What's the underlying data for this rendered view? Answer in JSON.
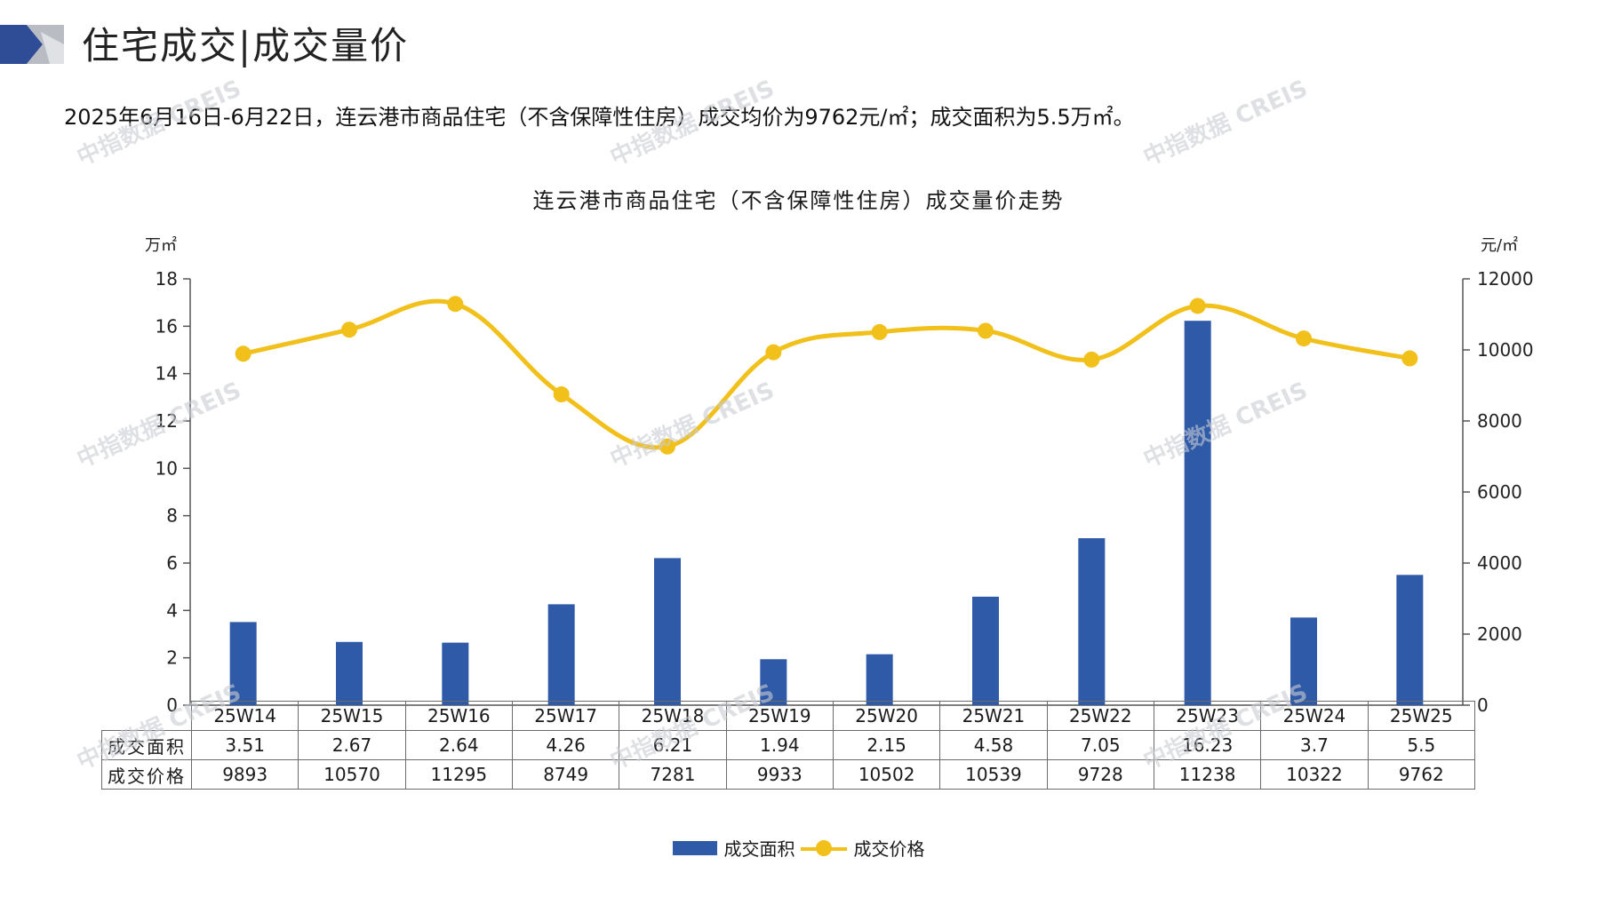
{
  "header": {
    "title": "住宅成交|成交量价",
    "summary": "2025年6月16日-6月22日，连云港市商品住宅（不含保障性住房）成交均价为9762元/㎡；成交面积为5.5万㎡。"
  },
  "watermark": "中指数据 CREIS",
  "colors": {
    "bar": "#2e5aa8",
    "line": "#f2c01a",
    "logo_dark": "#2e4d96",
    "logo_light": "#b9bcc3"
  },
  "chart_data": {
    "type": "bar",
    "title": "连云港市商品住宅（不含保障性住房）成交量价走势",
    "categories": [
      "25W14",
      "25W15",
      "25W16",
      "25W17",
      "25W18",
      "25W19",
      "25W20",
      "25W21",
      "25W22",
      "25W23",
      "25W24",
      "25W25"
    ],
    "series": [
      {
        "name": "成交面积",
        "type": "bar",
        "axis": "left",
        "values": [
          3.51,
          2.67,
          2.64,
          4.26,
          6.21,
          1.94,
          2.15,
          4.58,
          7.05,
          16.23,
          3.7,
          5.5
        ],
        "labels": [
          "3.51",
          "2.67",
          "2.64",
          "4.26",
          "6.21",
          "1.94",
          "2.15",
          "4.58",
          "7.05",
          "16.23",
          "3.7",
          "5.5"
        ]
      },
      {
        "name": "成交价格",
        "type": "line",
        "axis": "right",
        "values": [
          9893,
          10570,
          11295,
          8749,
          7281,
          9933,
          10502,
          10539,
          9728,
          11238,
          10322,
          9762
        ],
        "labels": [
          "9893",
          "10570",
          "11295",
          "8749",
          "7281",
          "9933",
          "10502",
          "10539",
          "9728",
          "11238",
          "10322",
          "9762"
        ]
      }
    ],
    "y_left": {
      "label": "万㎡",
      "ylim": [
        0,
        18
      ],
      "ticks": [
        0,
        2,
        4,
        6,
        8,
        10,
        12,
        14,
        16,
        18
      ]
    },
    "y_right": {
      "label": "元/㎡",
      "ylim": [
        0,
        12000
      ],
      "ticks": [
        0,
        2000,
        4000,
        6000,
        8000,
        10000,
        12000
      ]
    },
    "legend_position": "bottom",
    "data_table": true
  }
}
